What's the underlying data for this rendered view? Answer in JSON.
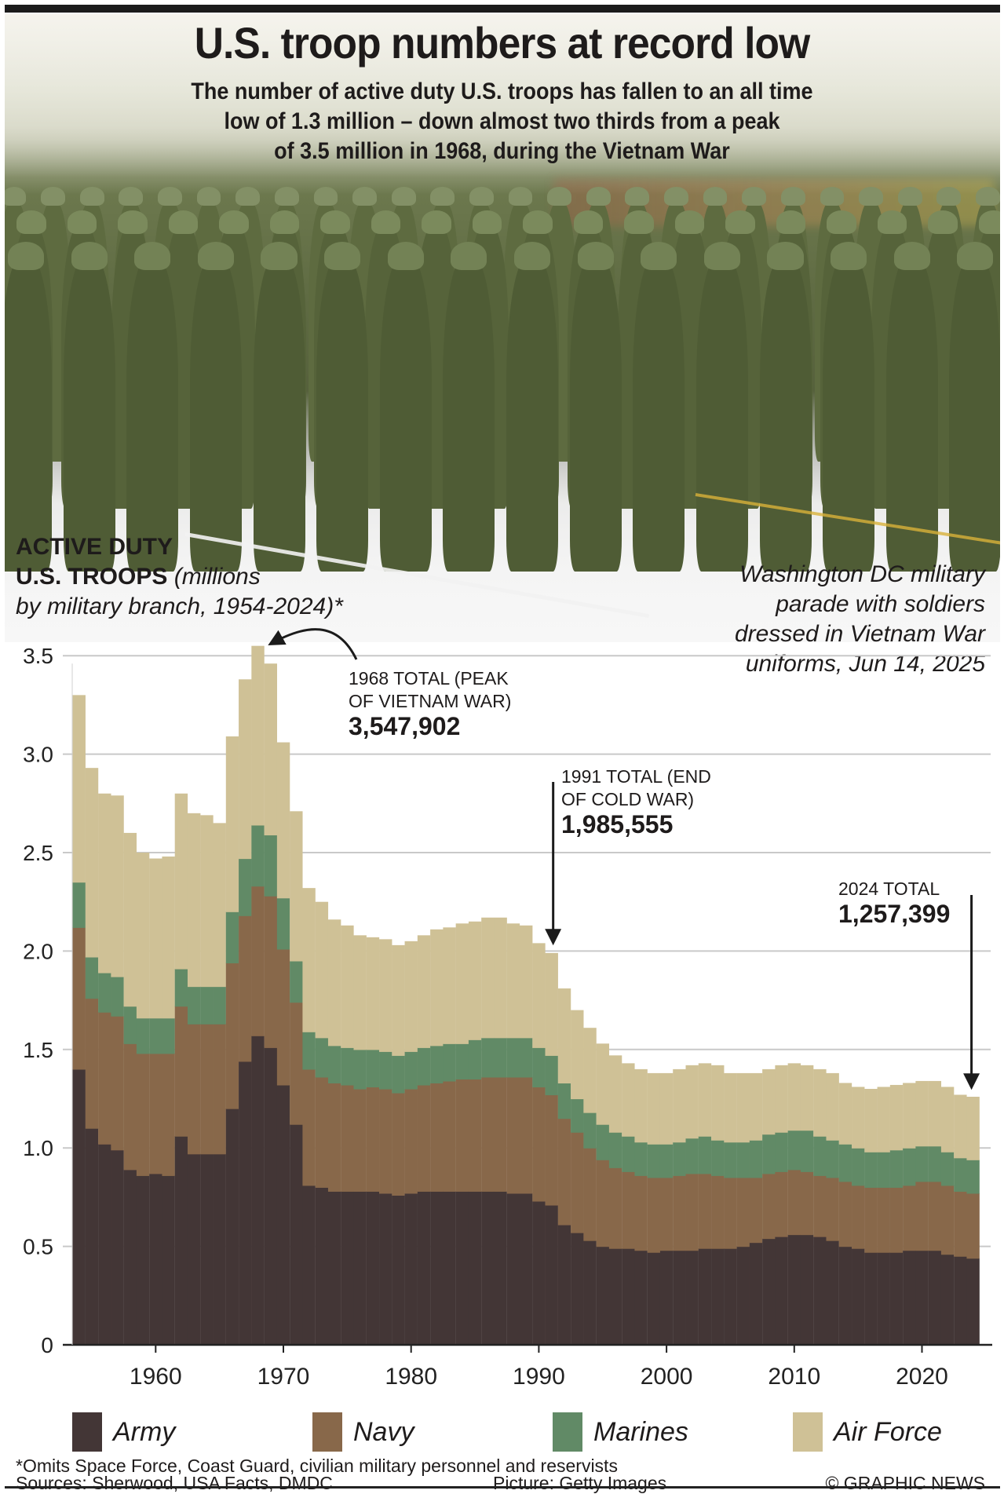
{
  "header": {
    "title": "U.S. troop numbers at record low",
    "subtitle_lines": [
      "The number of active duty U.S. troops has fallen to an all time",
      "low of 1.3 million – down almost two thirds from a peak",
      "of 3.5 million in 1968, during the Vietnam War"
    ]
  },
  "photo": {
    "caption_lines": [
      "Washington DC military",
      "parade with soldiers",
      "dressed in Vietnam War",
      "uniforms, Jun 14, 2025"
    ],
    "credit": "Picture: Getty Images"
  },
  "chart_heading": {
    "bold_line1": "ACTIVE DUTY",
    "bold_line2": "U.S. TROOPS",
    "italic_part1": "(millions",
    "italic_line3": "by military branch, 1954-2024)*"
  },
  "annotations": [
    {
      "line1": "1968 TOTAL (PEAK",
      "line2": "OF VIETNAM WAR)",
      "value": "3,547,902"
    },
    {
      "line1": "1991 TOTAL (END",
      "line2": "OF COLD WAR)",
      "value": "1,985,555"
    },
    {
      "line1": "2024 TOTAL",
      "line2": "",
      "value": "1,257,399"
    }
  ],
  "footer": {
    "note": "*Omits Space Force, Coast Guard, civilian military personnel and reservists",
    "sources": "Sources: Sherwood, USA Facts, DMDC",
    "picture_credit": "Picture: Getty Images",
    "copyright": "© GRAPHIC NEWS"
  },
  "chart_data": {
    "type": "bar",
    "stacked": true,
    "title": "ACTIVE DUTY U.S. TROOPS (millions by military branch, 1954-2024)*",
    "xlabel": "",
    "ylabel": "millions",
    "ylim": [
      0,
      3.5
    ],
    "yticks": [
      0,
      0.5,
      1.0,
      1.5,
      2.0,
      2.5,
      3.0,
      3.5
    ],
    "ytick_labels": [
      "0",
      "0.5",
      "1.0",
      "1.5",
      "2.0",
      "2.5",
      "3.0",
      "3.5"
    ],
    "xticks": [
      1960,
      1970,
      1980,
      1990,
      2000,
      2010,
      2020
    ],
    "xtick_labels": [
      "1960",
      "1970",
      "1980",
      "1990",
      "2000",
      "2010",
      "2020"
    ],
    "grid": true,
    "legend_position": "bottom",
    "x": [
      1954,
      1955,
      1956,
      1957,
      1958,
      1959,
      1960,
      1961,
      1962,
      1963,
      1964,
      1965,
      1966,
      1967,
      1968,
      1969,
      1970,
      1971,
      1972,
      1973,
      1974,
      1975,
      1976,
      1977,
      1978,
      1979,
      1980,
      1981,
      1982,
      1983,
      1984,
      1985,
      1986,
      1987,
      1988,
      1989,
      1990,
      1991,
      1992,
      1993,
      1994,
      1995,
      1996,
      1997,
      1998,
      1999,
      2000,
      2001,
      2002,
      2003,
      2004,
      2005,
      2006,
      2007,
      2008,
      2009,
      2010,
      2011,
      2012,
      2013,
      2014,
      2015,
      2016,
      2017,
      2018,
      2019,
      2020,
      2021,
      2022,
      2023,
      2024
    ],
    "series": [
      {
        "name": "Army",
        "color": "#433636",
        "values": [
          1.4,
          1.1,
          1.02,
          0.99,
          0.89,
          0.86,
          0.87,
          0.86,
          1.06,
          0.97,
          0.97,
          0.97,
          1.2,
          1.44,
          1.57,
          1.51,
          1.32,
          1.12,
          0.81,
          0.8,
          0.78,
          0.78,
          0.78,
          0.78,
          0.77,
          0.76,
          0.77,
          0.78,
          0.78,
          0.78,
          0.78,
          0.78,
          0.78,
          0.78,
          0.77,
          0.77,
          0.73,
          0.71,
          0.61,
          0.57,
          0.53,
          0.5,
          0.49,
          0.49,
          0.48,
          0.47,
          0.48,
          0.48,
          0.48,
          0.49,
          0.49,
          0.49,
          0.5,
          0.52,
          0.54,
          0.55,
          0.56,
          0.56,
          0.55,
          0.53,
          0.5,
          0.49,
          0.47,
          0.47,
          0.47,
          0.48,
          0.48,
          0.48,
          0.46,
          0.45,
          0.44
        ]
      },
      {
        "name": "Navy",
        "color": "#88684a",
        "values": [
          0.72,
          0.66,
          0.67,
          0.68,
          0.64,
          0.62,
          0.61,
          0.62,
          0.66,
          0.66,
          0.66,
          0.66,
          0.74,
          0.74,
          0.76,
          0.77,
          0.69,
          0.62,
          0.59,
          0.56,
          0.55,
          0.54,
          0.52,
          0.53,
          0.53,
          0.52,
          0.53,
          0.54,
          0.55,
          0.56,
          0.57,
          0.57,
          0.58,
          0.58,
          0.59,
          0.59,
          0.58,
          0.56,
          0.54,
          0.51,
          0.47,
          0.44,
          0.41,
          0.39,
          0.38,
          0.38,
          0.37,
          0.38,
          0.39,
          0.38,
          0.37,
          0.36,
          0.35,
          0.33,
          0.33,
          0.33,
          0.33,
          0.32,
          0.31,
          0.32,
          0.33,
          0.32,
          0.33,
          0.33,
          0.33,
          0.33,
          0.35,
          0.35,
          0.35,
          0.33,
          0.33
        ]
      },
      {
        "name": "Marines",
        "color": "#618a66",
        "values": [
          0.23,
          0.21,
          0.2,
          0.2,
          0.19,
          0.18,
          0.18,
          0.18,
          0.19,
          0.19,
          0.19,
          0.19,
          0.26,
          0.29,
          0.31,
          0.31,
          0.26,
          0.21,
          0.19,
          0.2,
          0.19,
          0.19,
          0.2,
          0.19,
          0.19,
          0.19,
          0.19,
          0.19,
          0.19,
          0.19,
          0.18,
          0.2,
          0.2,
          0.2,
          0.2,
          0.2,
          0.2,
          0.2,
          0.18,
          0.17,
          0.18,
          0.18,
          0.18,
          0.18,
          0.17,
          0.17,
          0.17,
          0.17,
          0.18,
          0.19,
          0.18,
          0.18,
          0.18,
          0.19,
          0.2,
          0.2,
          0.2,
          0.21,
          0.2,
          0.19,
          0.19,
          0.19,
          0.18,
          0.18,
          0.19,
          0.19,
          0.18,
          0.18,
          0.17,
          0.17,
          0.17
        ]
      },
      {
        "name": "Air Force",
        "color": "#cfc196",
        "values": [
          0.95,
          0.96,
          0.91,
          0.92,
          0.88,
          0.84,
          0.81,
          0.82,
          0.89,
          0.88,
          0.87,
          0.83,
          0.89,
          0.91,
          0.91,
          0.87,
          0.79,
          0.76,
          0.73,
          0.69,
          0.64,
          0.62,
          0.58,
          0.57,
          0.57,
          0.56,
          0.56,
          0.57,
          0.59,
          0.59,
          0.61,
          0.6,
          0.61,
          0.61,
          0.58,
          0.57,
          0.53,
          0.52,
          0.48,
          0.45,
          0.43,
          0.41,
          0.39,
          0.37,
          0.37,
          0.36,
          0.36,
          0.37,
          0.37,
          0.37,
          0.38,
          0.35,
          0.35,
          0.34,
          0.33,
          0.34,
          0.34,
          0.33,
          0.34,
          0.34,
          0.31,
          0.31,
          0.32,
          0.33,
          0.33,
          0.33,
          0.33,
          0.33,
          0.33,
          0.32,
          0.32
        ]
      }
    ],
    "annotated_totals": [
      {
        "year": 1968,
        "total": 3547902
      },
      {
        "year": 1991,
        "total": 1985555
      },
      {
        "year": 2024,
        "total": 1257399
      }
    ]
  }
}
